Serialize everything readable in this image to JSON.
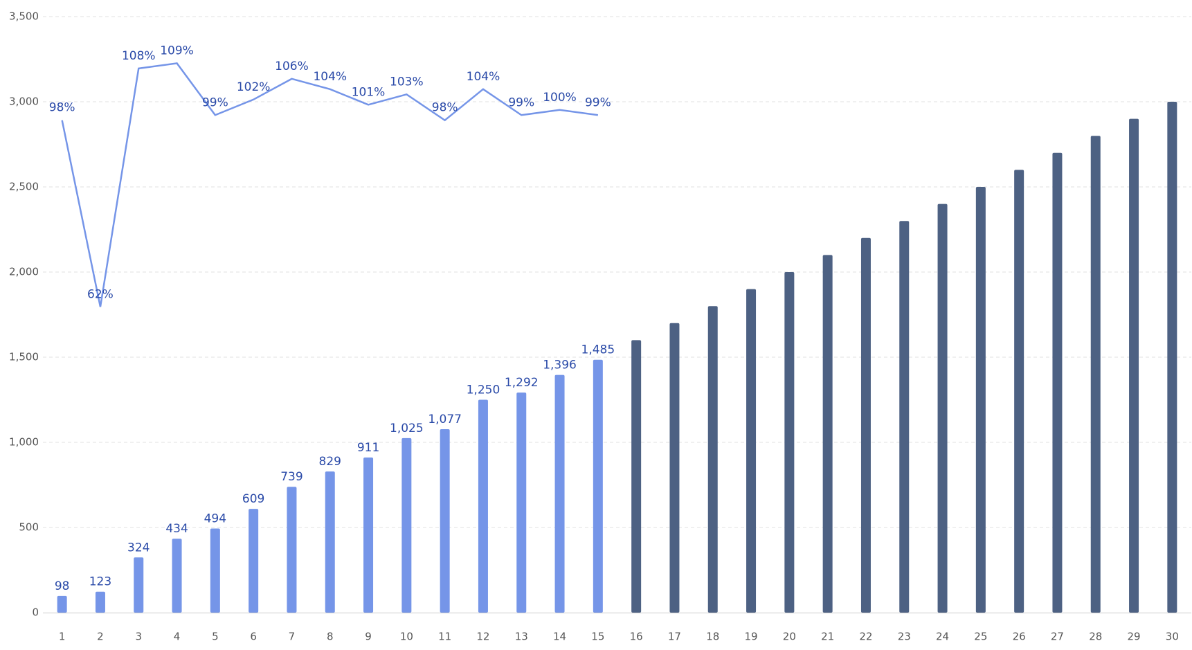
{
  "chart_data": {
    "type": "bar",
    "categories": [
      "1",
      "2",
      "3",
      "4",
      "5",
      "6",
      "7",
      "8",
      "9",
      "10",
      "11",
      "12",
      "13",
      "14",
      "15",
      "16",
      "17",
      "18",
      "19",
      "20",
      "21",
      "22",
      "23",
      "24",
      "25",
      "26",
      "27",
      "28",
      "29",
      "30"
    ],
    "series": [
      {
        "type": "bar",
        "color": "#7595e8",
        "values": [
          98,
          123,
          324,
          434,
          494,
          609,
          739,
          829,
          911,
          1025,
          1077,
          1250,
          1292,
          1396,
          1485,
          null,
          null,
          null,
          null,
          null,
          null,
          null,
          null,
          null,
          null,
          null,
          null,
          null,
          null,
          null
        ],
        "value_labels": [
          "98",
          "123",
          "324",
          "434",
          "494",
          "609",
          "739",
          "829",
          "911",
          "1,025",
          "1,077",
          "1,250",
          "1,292",
          "1,396",
          "1,485",
          null,
          null,
          null,
          null,
          null,
          null,
          null,
          null,
          null,
          null,
          null,
          null,
          null,
          null,
          null
        ]
      },
      {
        "type": "bar",
        "color": "#4d6183",
        "values": [
          null,
          null,
          null,
          null,
          null,
          null,
          null,
          null,
          null,
          null,
          null,
          null,
          null,
          null,
          null,
          1600,
          1700,
          1800,
          1900,
          2000,
          2100,
          2200,
          2300,
          2400,
          2500,
          2600,
          2700,
          2800,
          2900,
          3000
        ]
      },
      {
        "type": "line",
        "axis": "y2",
        "color": "#7595e8",
        "values": [
          98,
          62,
          108,
          109,
          99,
          102,
          106,
          104,
          101,
          103,
          98,
          104,
          99,
          100,
          99,
          null,
          null,
          null,
          null,
          null,
          null,
          null,
          null,
          null,
          null,
          null,
          null,
          null,
          null,
          null
        ],
        "value_labels": [
          "98%",
          "62%",
          "108%",
          "109%",
          "99%",
          "102%",
          "106%",
          "104%",
          "101%",
          "103%",
          "98%",
          "104%",
          "99%",
          "100%",
          "99%",
          null,
          null,
          null,
          null,
          null,
          null,
          null,
          null,
          null,
          null,
          null,
          null,
          null,
          null,
          null
        ]
      }
    ],
    "ylim": [
      0,
      3500
    ],
    "yticks": [
      0,
      500,
      {
        "value": 1000,
        "label": "1,000"
      },
      {
        "value": 1500,
        "label": "1,500"
      },
      {
        "value": 2000,
        "label": "2,000"
      },
      {
        "value": 2500,
        "label": "2,500"
      },
      {
        "value": 3000,
        "label": "3,000"
      },
      {
        "value": 3500,
        "label": "3,500"
      }
    ],
    "y2lim": [
      3,
      118
    ],
    "grid": true
  }
}
